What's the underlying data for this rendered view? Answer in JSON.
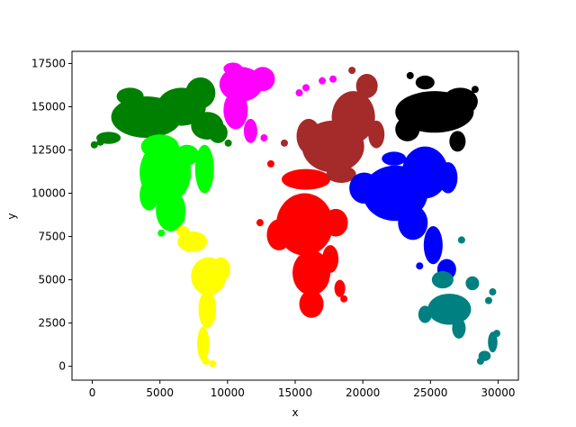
{
  "chart_data": {
    "type": "scatter",
    "title": "",
    "xlabel": "x",
    "ylabel": "y",
    "xlim": [
      -1500,
      31500
    ],
    "ylim": [
      -800,
      18200
    ],
    "xticks": [
      0,
      5000,
      10000,
      15000,
      20000,
      25000,
      30000
    ],
    "yticks": [
      0,
      2500,
      5000,
      7500,
      10000,
      12500,
      15000,
      17500
    ],
    "grid": false,
    "legend": "none",
    "series": [
      {
        "color": "#008000",
        "blobs": [
          {
            "x": 4000,
            "y": 14400,
            "rx": 2600,
            "ry": 1200
          },
          {
            "x": 6600,
            "y": 15000,
            "rx": 1800,
            "ry": 1100
          },
          {
            "x": 8000,
            "y": 15800,
            "rx": 1100,
            "ry": 900
          },
          {
            "x": 8500,
            "y": 13900,
            "rx": 1200,
            "ry": 800
          },
          {
            "x": 2800,
            "y": 15600,
            "rx": 1000,
            "ry": 500
          },
          {
            "x": 1200,
            "y": 13200,
            "rx": 900,
            "ry": 350
          },
          {
            "x": 9300,
            "y": 13500,
            "rx": 700,
            "ry": 600
          }
        ],
        "points": [
          {
            "x": 150,
            "y": 12800
          },
          {
            "x": 600,
            "y": 12950
          },
          {
            "x": 10050,
            "y": 12900
          }
        ]
      },
      {
        "color": "#ff00ff",
        "blobs": [
          {
            "x": 11000,
            "y": 16300,
            "rx": 1600,
            "ry": 1000
          },
          {
            "x": 10600,
            "y": 14800,
            "rx": 900,
            "ry": 1100
          },
          {
            "x": 12600,
            "y": 16600,
            "rx": 900,
            "ry": 700
          },
          {
            "x": 11700,
            "y": 13600,
            "rx": 500,
            "ry": 700
          },
          {
            "x": 10400,
            "y": 17200,
            "rx": 700,
            "ry": 350
          }
        ],
        "points": [
          {
            "x": 12700,
            "y": 13200
          },
          {
            "x": 15300,
            "y": 15800
          },
          {
            "x": 15800,
            "y": 16100
          },
          {
            "x": 17000,
            "y": 16500
          },
          {
            "x": 17800,
            "y": 16600
          }
        ]
      },
      {
        "color": "#00ff00",
        "blobs": [
          {
            "x": 5400,
            "y": 11200,
            "rx": 1900,
            "ry": 1800
          },
          {
            "x": 5800,
            "y": 9000,
            "rx": 1100,
            "ry": 1200
          },
          {
            "x": 5000,
            "y": 12700,
            "rx": 1400,
            "ry": 700
          },
          {
            "x": 8300,
            "y": 11400,
            "rx": 700,
            "ry": 1400
          },
          {
            "x": 4200,
            "y": 9900,
            "rx": 700,
            "ry": 900
          },
          {
            "x": 7000,
            "y": 12200,
            "rx": 900,
            "ry": 600
          }
        ],
        "points": [
          {
            "x": 5100,
            "y": 7700
          },
          {
            "x": 6600,
            "y": 8500
          }
        ]
      },
      {
        "color": "#ffff00",
        "blobs": [
          {
            "x": 8600,
            "y": 5200,
            "rx": 1300,
            "ry": 1100
          },
          {
            "x": 7400,
            "y": 7200,
            "rx": 1100,
            "ry": 600
          },
          {
            "x": 8500,
            "y": 3300,
            "rx": 650,
            "ry": 1100
          },
          {
            "x": 8200,
            "y": 1300,
            "rx": 450,
            "ry": 1000
          },
          {
            "x": 9500,
            "y": 5600,
            "rx": 700,
            "ry": 700
          },
          {
            "x": 6700,
            "y": 7800,
            "rx": 500,
            "ry": 300
          }
        ],
        "points": [
          {
            "x": 8400,
            "y": 300
          },
          {
            "x": 8900,
            "y": 150
          }
        ]
      },
      {
        "color": "#ff0000",
        "blobs": [
          {
            "x": 15700,
            "y": 8200,
            "rx": 2100,
            "ry": 1800
          },
          {
            "x": 16200,
            "y": 5400,
            "rx": 1400,
            "ry": 1300
          },
          {
            "x": 16200,
            "y": 3600,
            "rx": 900,
            "ry": 800
          },
          {
            "x": 13800,
            "y": 7600,
            "rx": 900,
            "ry": 900
          },
          {
            "x": 15800,
            "y": 10800,
            "rx": 1800,
            "ry": 600
          },
          {
            "x": 18000,
            "y": 8300,
            "rx": 900,
            "ry": 800
          },
          {
            "x": 17600,
            "y": 6200,
            "rx": 600,
            "ry": 800
          },
          {
            "x": 18300,
            "y": 4500,
            "rx": 400,
            "ry": 500
          }
        ],
        "points": [
          {
            "x": 13200,
            "y": 11700
          },
          {
            "x": 12400,
            "y": 8300
          },
          {
            "x": 18600,
            "y": 3900
          }
        ]
      },
      {
        "color": "#a52a2a",
        "blobs": [
          {
            "x": 17800,
            "y": 12700,
            "rx": 2300,
            "ry": 1500
          },
          {
            "x": 19300,
            "y": 14400,
            "rx": 1600,
            "ry": 1500
          },
          {
            "x": 20300,
            "y": 16200,
            "rx": 800,
            "ry": 700
          },
          {
            "x": 16000,
            "y": 13300,
            "rx": 900,
            "ry": 1000
          },
          {
            "x": 18400,
            "y": 11100,
            "rx": 1100,
            "ry": 500
          },
          {
            "x": 21000,
            "y": 13400,
            "rx": 600,
            "ry": 800
          }
        ],
        "points": [
          {
            "x": 19200,
            "y": 17100
          },
          {
            "x": 14200,
            "y": 12900
          }
        ]
      },
      {
        "color": "#000000",
        "blobs": [
          {
            "x": 25300,
            "y": 14700,
            "rx": 2900,
            "ry": 1200
          },
          {
            "x": 27200,
            "y": 15300,
            "rx": 1300,
            "ry": 800
          },
          {
            "x": 23300,
            "y": 13700,
            "rx": 900,
            "ry": 700
          },
          {
            "x": 24600,
            "y": 16400,
            "rx": 700,
            "ry": 400
          },
          {
            "x": 27000,
            "y": 13000,
            "rx": 600,
            "ry": 600
          }
        ],
        "points": [
          {
            "x": 23500,
            "y": 16800
          },
          {
            "x": 28300,
            "y": 16000
          }
        ]
      },
      {
        "color": "#0000ff",
        "blobs": [
          {
            "x": 22400,
            "y": 10000,
            "rx": 2400,
            "ry": 1600
          },
          {
            "x": 24600,
            "y": 11200,
            "rx": 1700,
            "ry": 1500
          },
          {
            "x": 23700,
            "y": 8300,
            "rx": 1100,
            "ry": 1000
          },
          {
            "x": 25200,
            "y": 7000,
            "rx": 700,
            "ry": 1100
          },
          {
            "x": 26200,
            "y": 5600,
            "rx": 700,
            "ry": 600
          },
          {
            "x": 20100,
            "y": 10300,
            "rx": 1100,
            "ry": 900
          },
          {
            "x": 26300,
            "y": 10900,
            "rx": 700,
            "ry": 900
          },
          {
            "x": 22300,
            "y": 12000,
            "rx": 900,
            "ry": 400
          }
        ],
        "points": [
          {
            "x": 24200,
            "y": 5800
          },
          {
            "x": 25700,
            "y": 5000
          }
        ]
      },
      {
        "color": "#008080",
        "blobs": [
          {
            "x": 26400,
            "y": 3300,
            "rx": 1600,
            "ry": 900
          },
          {
            "x": 25900,
            "y": 5000,
            "rx": 800,
            "ry": 500
          },
          {
            "x": 27100,
            "y": 2200,
            "rx": 500,
            "ry": 600
          },
          {
            "x": 24600,
            "y": 3000,
            "rx": 500,
            "ry": 500
          },
          {
            "x": 28100,
            "y": 4800,
            "rx": 500,
            "ry": 400
          },
          {
            "x": 29600,
            "y": 1400,
            "rx": 350,
            "ry": 600
          },
          {
            "x": 29000,
            "y": 600,
            "rx": 450,
            "ry": 300
          }
        ],
        "points": [
          {
            "x": 27300,
            "y": 7300
          },
          {
            "x": 29600,
            "y": 4300
          },
          {
            "x": 29300,
            "y": 3800
          },
          {
            "x": 28700,
            "y": 300
          },
          {
            "x": 29900,
            "y": 1900
          }
        ]
      }
    ]
  }
}
